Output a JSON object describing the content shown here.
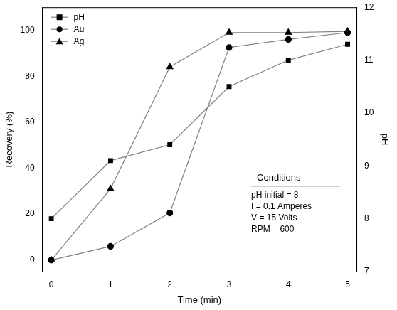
{
  "chart_data": {
    "type": "line",
    "x_label": "Time (min)",
    "y_label": "Recovery (%)",
    "y2_label": "pH",
    "x": [
      0,
      1,
      2,
      3,
      4,
      5
    ],
    "xlim": [
      -0.15,
      5.15
    ],
    "xticks": [
      0,
      1,
      2,
      3,
      4,
      5
    ],
    "ylim": [
      -5,
      110
    ],
    "yticks": [
      0,
      20,
      40,
      60,
      80,
      100
    ],
    "y2lim": [
      7,
      12
    ],
    "y2ticks": [
      7,
      8,
      9,
      10,
      11,
      12
    ],
    "series": [
      {
        "name": "pH",
        "axis": "y2",
        "color": "#808080",
        "marker": "square",
        "values": [
          8.0,
          9.1,
          9.4,
          10.5,
          11.0,
          11.3
        ]
      },
      {
        "name": "Au",
        "color": "#808080",
        "marker": "circle",
        "values": [
          0,
          6,
          20.5,
          92.5,
          96,
          99
        ]
      },
      {
        "name": "Ag",
        "color": "#808080",
        "marker": "triangle",
        "values": [
          0,
          31,
          84,
          99,
          99,
          99.5
        ]
      }
    ],
    "legend": "upper left",
    "grid": false,
    "annotations": [
      "Conditions",
      "pH initial = 8",
      "I = 0.1 Amperes",
      "V = 15 Volts",
      "RPM = 600"
    ]
  }
}
